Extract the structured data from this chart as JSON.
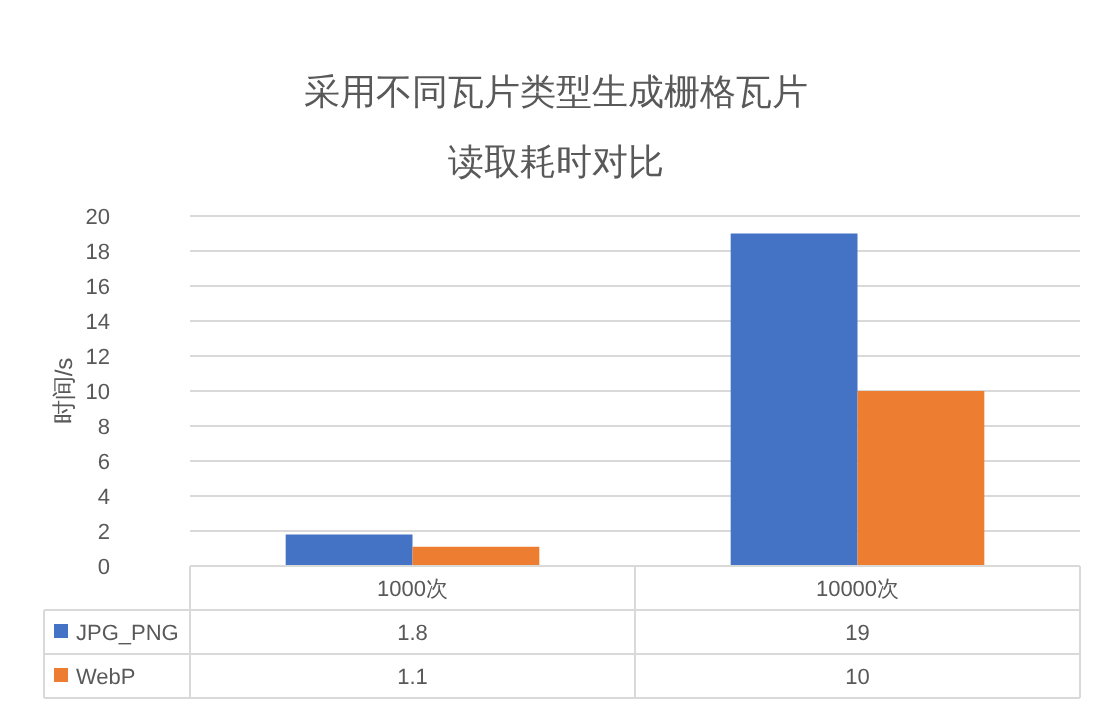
{
  "chart_data": {
    "type": "bar",
    "title": "采用不同瓦片类型生成栅格瓦片",
    "subtitle": "读取耗时对比",
    "ylabel": "时间/s",
    "categories": [
      "1000次",
      "10000次"
    ],
    "series": [
      {
        "name": "JPG_PNG",
        "color": "#4472c4",
        "values": [
          1.8,
          19
        ]
      },
      {
        "name": "WebP",
        "color": "#ed7d31",
        "values": [
          1.1,
          10
        ]
      }
    ],
    "ylim": [
      0,
      20
    ],
    "yticks": [
      0,
      2,
      4,
      6,
      8,
      10,
      12,
      14,
      16,
      18,
      20
    ],
    "grid": "y",
    "legend": "bottom",
    "data_labels": true
  }
}
